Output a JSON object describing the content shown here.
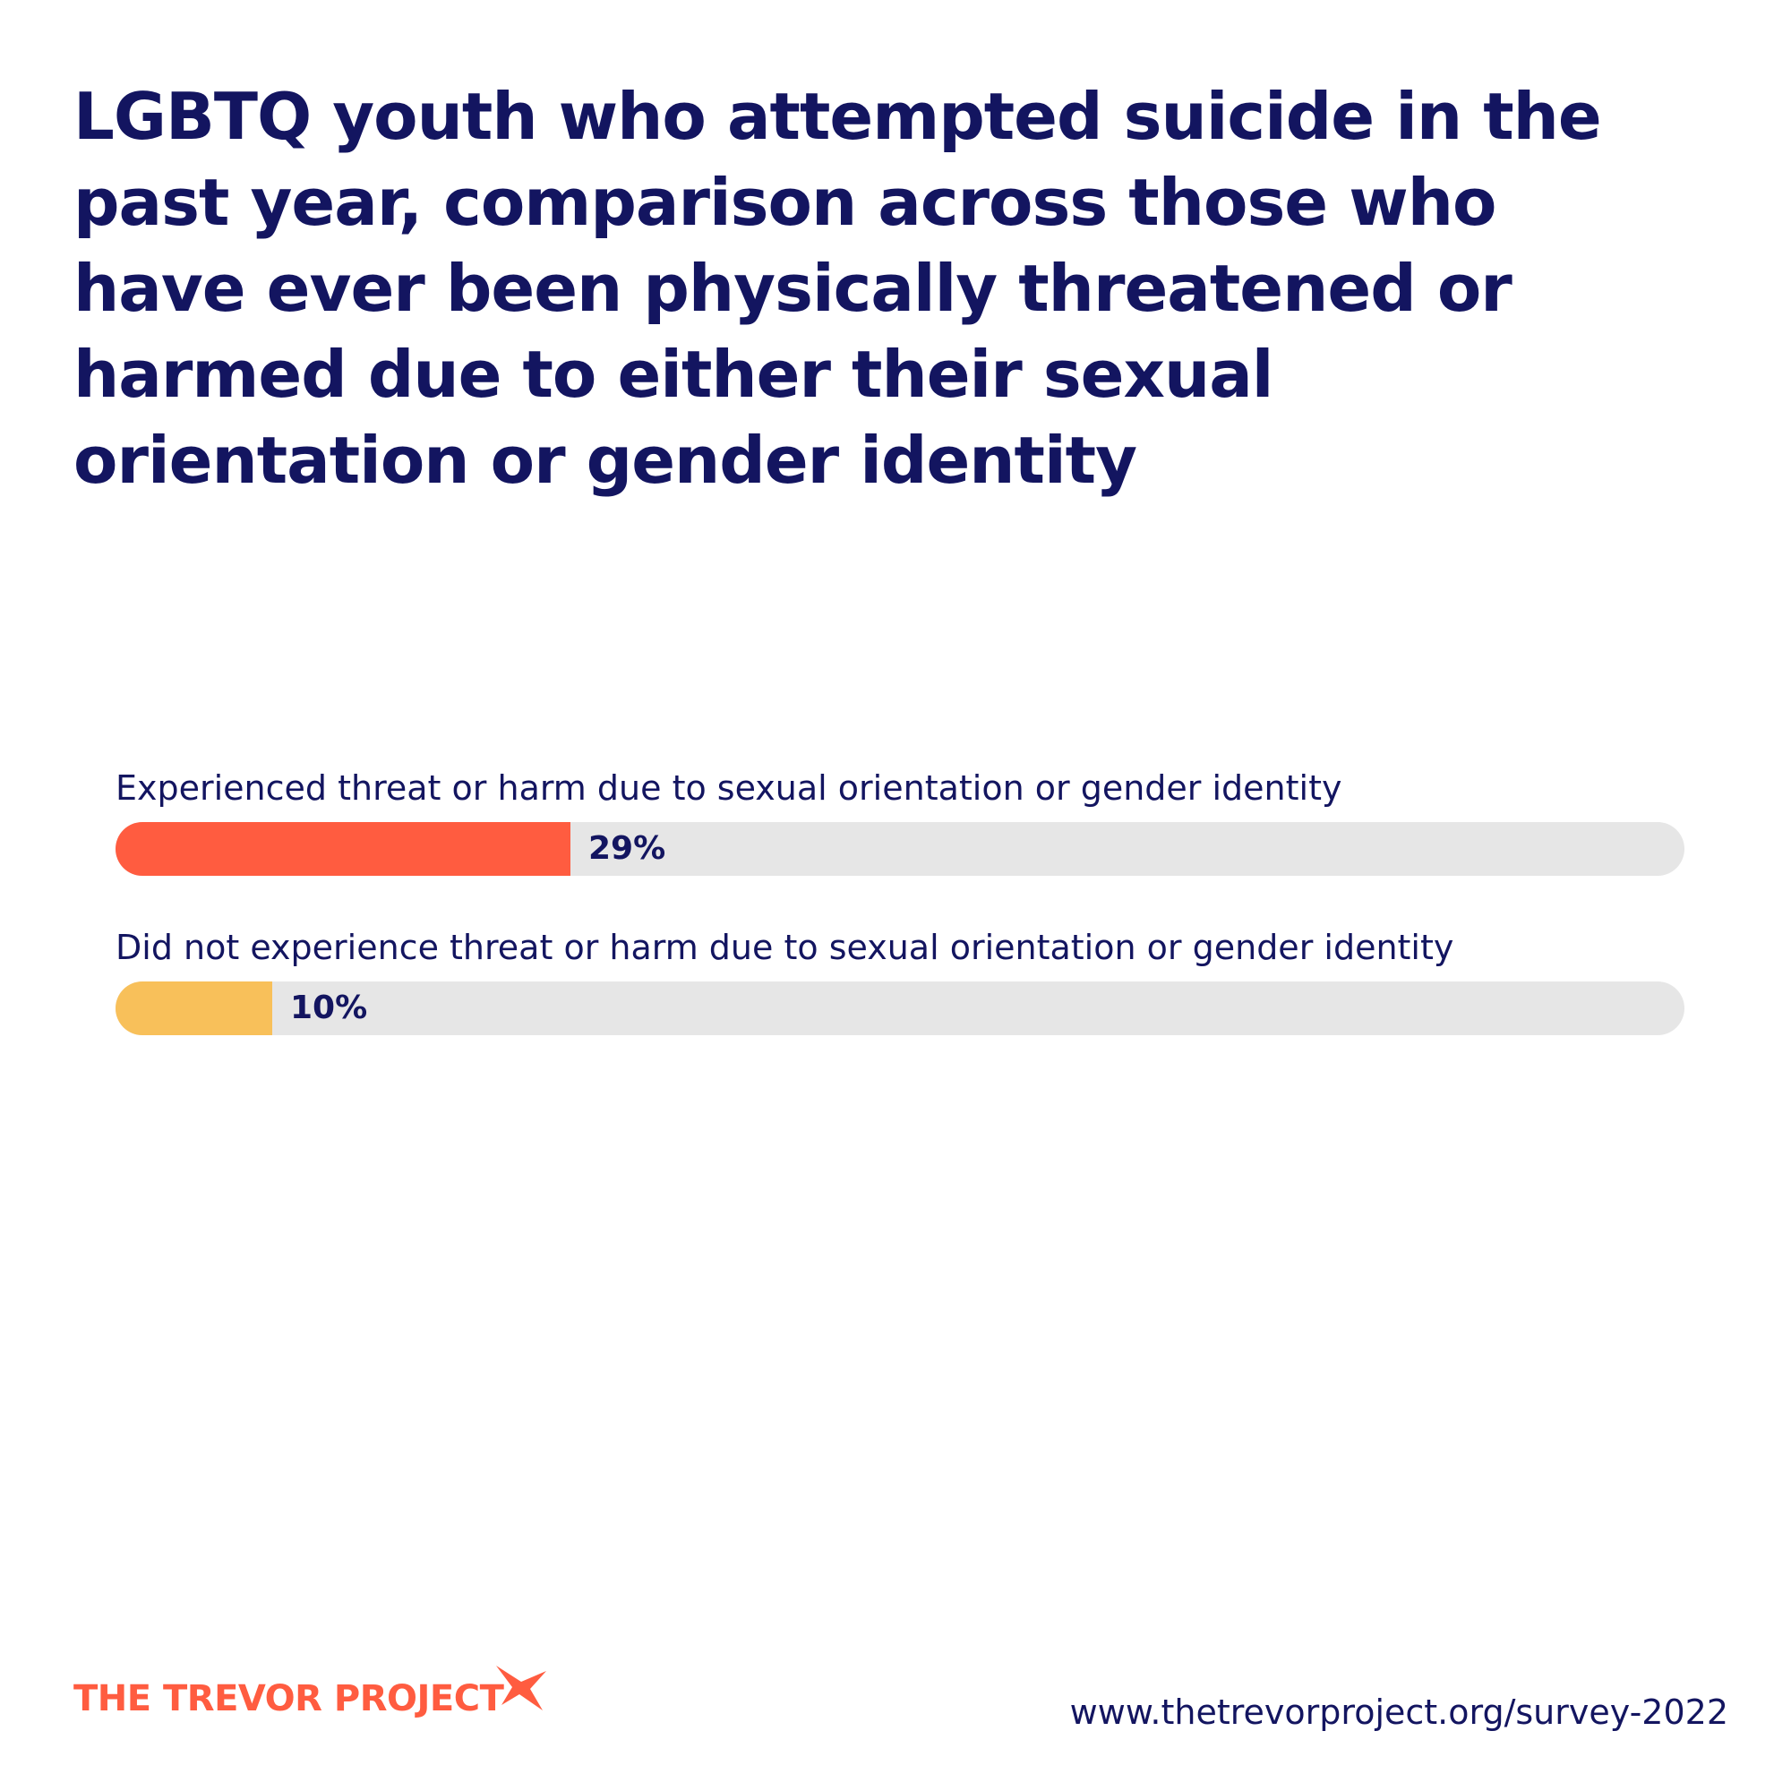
{
  "title": "LGBTQ youth who attempted suicide in the past year, comparison across those who have ever been physically threatened or harmed due to either their sexual orientation or gender identity",
  "chart_data": {
    "type": "bar",
    "orientation": "horizontal",
    "title": "LGBTQ youth who attempted suicide in the past year, comparison across those who have ever been physically threatened or harmed due to either their sexual orientation or gender identity",
    "categories": [
      "Experienced threat or harm due to sexual orientation or gender identity",
      "Did not experience threat or harm due to sexual orientation or gender identity"
    ],
    "values": [
      29,
      10
    ],
    "value_labels": [
      "29%",
      "10%"
    ],
    "xlim": [
      0,
      100
    ],
    "colors": [
      "#ff5c40",
      "#f8c05a"
    ],
    "track_color": "#e6e6e6",
    "grid": false
  },
  "footer": {
    "brand": "THE TREVOR PROJECT",
    "brand_icon": "star-icon",
    "url": "www.thetrevorproject.org/survey-2022"
  }
}
